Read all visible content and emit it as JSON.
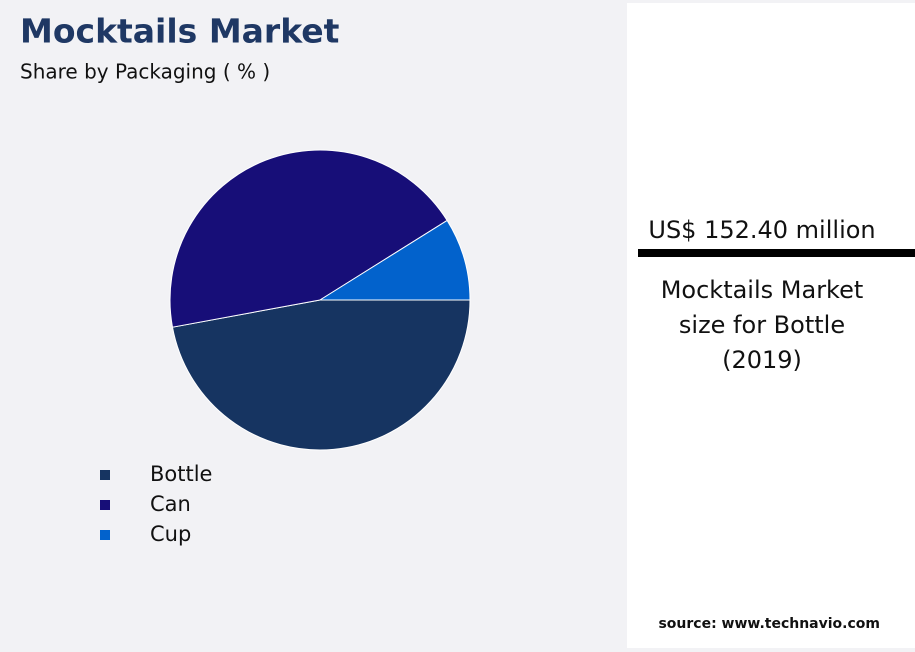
{
  "chart_data": {
    "type": "pie",
    "title": "Mocktails Market",
    "subtitle": "Share by Packaging ( % )",
    "categories": [
      "Bottle",
      "Can",
      "Cup"
    ],
    "values": [
      47.1,
      44.0,
      8.9
    ],
    "colors": [
      "#163461",
      "#170e78",
      "#0262cc"
    ]
  },
  "callout": {
    "value": "US$ 152.40 million",
    "description": [
      "Mocktails Market",
      "size for Bottle",
      "(2019)"
    ]
  },
  "source": "source: www.technavio.com"
}
